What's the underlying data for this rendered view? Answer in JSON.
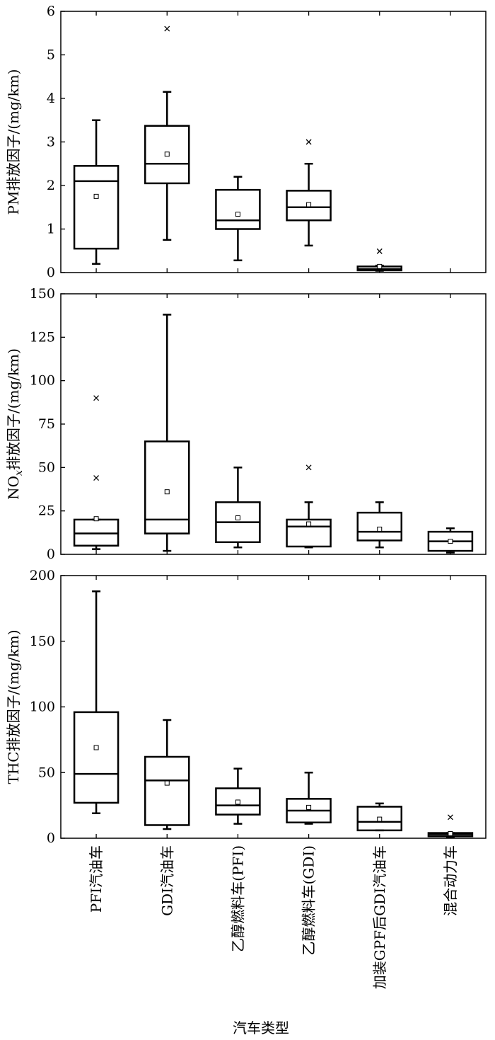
{
  "chart_data": {
    "type": "box",
    "xlabel": "汽车类型",
    "categories": [
      "PFI汽油车",
      "GDI汽油车",
      "乙醇燃料车(PFI)",
      "乙醇燃料车(GDI)",
      "加装GPF后GDI汽油车",
      "混合动力车"
    ],
    "panels": [
      {
        "ylabel": "PM排放因子/(mg/km)",
        "ylim": [
          0,
          6
        ],
        "yticks": [
          0,
          1,
          2,
          3,
          4,
          5,
          6
        ],
        "boxes": [
          {
            "min": 0.2,
            "q1": 0.55,
            "median": 2.1,
            "q3": 2.45,
            "max": 3.5,
            "mean": 1.75,
            "outliers": []
          },
          {
            "min": 0.75,
            "q1": 2.05,
            "median": 2.5,
            "q3": 3.37,
            "max": 4.15,
            "mean": 2.72,
            "outliers": [
              5.6
            ]
          },
          {
            "min": 0.28,
            "q1": 1.0,
            "median": 1.2,
            "q3": 1.9,
            "max": 2.2,
            "mean": 1.34,
            "outliers": []
          },
          {
            "min": 0.62,
            "q1": 1.2,
            "median": 1.5,
            "q3": 1.88,
            "max": 2.5,
            "mean": 1.56,
            "outliers": [
              3.0
            ]
          },
          {
            "min": 0.04,
            "q1": 0.05,
            "median": 0.08,
            "q3": 0.14,
            "max": 0.16,
            "mean": 0.14,
            "outliers": [
              0.49
            ]
          },
          null
        ]
      },
      {
        "ylabel": "NOx排放因子/(mg/km)",
        "ylim": [
          0,
          150
        ],
        "yticks": [
          0,
          25,
          50,
          75,
          100,
          125,
          150
        ],
        "boxes": [
          {
            "min": 3,
            "q1": 5,
            "median": 12,
            "q3": 20,
            "max": 20,
            "mean": 20.5,
            "outliers": [
              44,
              90
            ]
          },
          {
            "min": 2,
            "q1": 12,
            "median": 20,
            "q3": 65,
            "max": 138,
            "mean": 36,
            "outliers": []
          },
          {
            "min": 4,
            "q1": 7,
            "median": 18.5,
            "q3": 30,
            "max": 50,
            "mean": 21,
            "outliers": []
          },
          {
            "min": 4,
            "q1": 4.5,
            "median": 16,
            "q3": 20,
            "max": 30,
            "mean": 17.5,
            "outliers": [
              50
            ]
          },
          {
            "min": 4,
            "q1": 8,
            "median": 13,
            "q3": 24,
            "max": 30,
            "mean": 14.5,
            "outliers": []
          },
          {
            "min": 1,
            "q1": 2,
            "median": 7.5,
            "q3": 13,
            "max": 15,
            "mean": 7.5,
            "outliers": []
          }
        ]
      },
      {
        "ylabel": "THC排放因子/(mg/km)",
        "ylim": [
          0,
          200
        ],
        "yticks": [
          0,
          50,
          100,
          150,
          200
        ],
        "boxes": [
          {
            "min": 19,
            "q1": 27,
            "median": 49,
            "q3": 96,
            "max": 188,
            "mean": 69,
            "outliers": []
          },
          {
            "min": 7,
            "q1": 10,
            "median": 44,
            "q3": 62,
            "max": 90,
            "mean": 42,
            "outliers": []
          },
          {
            "min": 11,
            "q1": 18,
            "median": 25,
            "q3": 38,
            "max": 53,
            "mean": 27.5,
            "outliers": []
          },
          {
            "min": 11,
            "q1": 12,
            "median": 21,
            "q3": 30,
            "max": 50,
            "mean": 23.5,
            "outliers": []
          },
          {
            "min": 6,
            "q1": 6,
            "median": 12.5,
            "q3": 24,
            "max": 26.5,
            "mean": 14.5,
            "outliers": []
          },
          {
            "min": 1,
            "q1": 1.5,
            "median": 3,
            "q3": 4,
            "max": 4,
            "mean": 3.5,
            "outliers": [
              16
            ]
          }
        ]
      }
    ]
  }
}
